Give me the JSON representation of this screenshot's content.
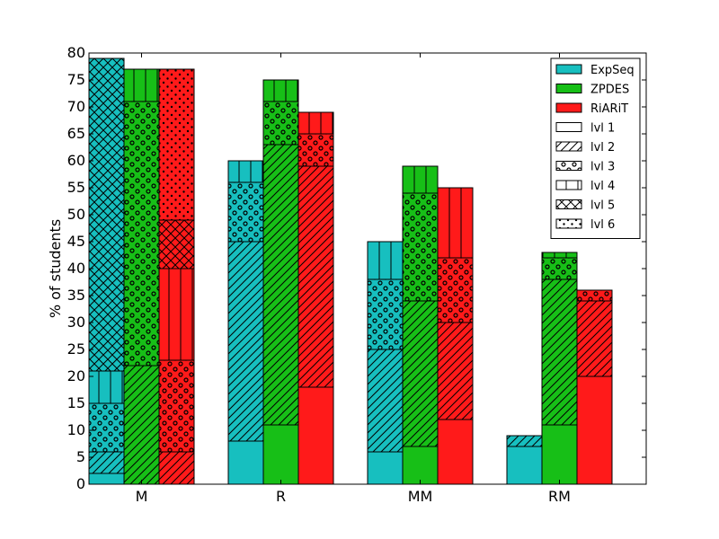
{
  "chart_data": {
    "type": "bar",
    "stacked": true,
    "grouped": true,
    "title": "",
    "xlabel": "",
    "ylabel": "% of students",
    "ylim": [
      0,
      80
    ],
    "yticks": [
      0,
      5,
      10,
      15,
      20,
      25,
      30,
      35,
      40,
      45,
      50,
      55,
      60,
      65,
      70,
      75,
      80
    ],
    "categories": [
      "M",
      "R",
      "MM",
      "RM"
    ],
    "grid": false,
    "legend_position": "top-right",
    "series": [
      {
        "name": "ExpSeq",
        "color": "#17bfbf",
        "levels": [
          [
            2,
            4,
            9,
            6,
            58,
            0
          ],
          [
            8,
            37,
            11,
            4,
            0,
            0
          ],
          [
            6,
            19,
            13,
            7,
            0,
            0
          ],
          [
            7,
            2,
            0,
            0,
            0,
            0
          ]
        ]
      },
      {
        "name": "ZPDES",
        "color": "#17bf17",
        "levels": [
          [
            0,
            22,
            49,
            6,
            0,
            0
          ],
          [
            11,
            52,
            8,
            4,
            0,
            0
          ],
          [
            7,
            27,
            20,
            5,
            0,
            0
          ],
          [
            11,
            27,
            4,
            1,
            0,
            0
          ]
        ]
      },
      {
        "name": "RiARiT",
        "color": "#ff1a1a",
        "levels": [
          [
            0,
            6,
            17,
            17,
            9,
            28
          ],
          [
            18,
            41,
            6,
            4,
            0,
            0
          ],
          [
            12,
            18,
            12,
            13,
            0,
            0
          ],
          [
            20,
            14,
            2,
            0,
            0,
            0
          ]
        ]
      }
    ],
    "level_legend": [
      {
        "label": "lvl 1",
        "pattern": "none"
      },
      {
        "label": "lvl 2",
        "pattern": "diagonal"
      },
      {
        "label": "lvl 3",
        "pattern": "circles"
      },
      {
        "label": "lvl 4",
        "pattern": "vertical"
      },
      {
        "label": "lvl 5",
        "pattern": "crosshatch"
      },
      {
        "label": "lvl 6",
        "pattern": "dots"
      }
    ]
  }
}
